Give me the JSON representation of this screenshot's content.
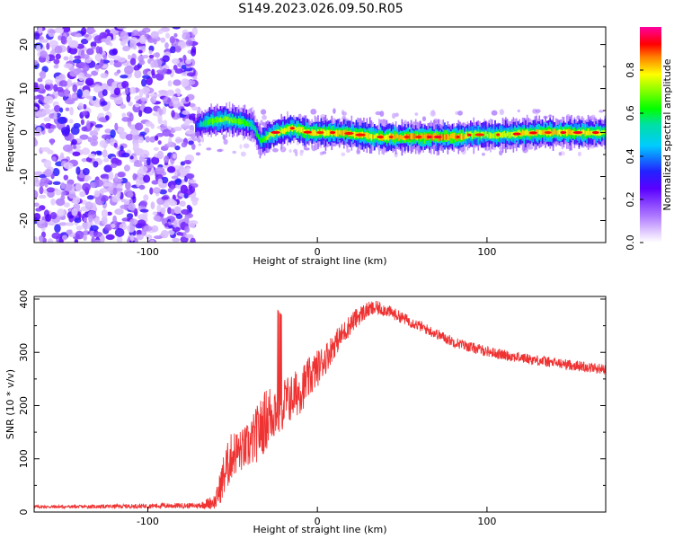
{
  "title": "S149.2023.026.09.50.R05",
  "chart_data": [
    {
      "type": "heatmap",
      "xlabel": "Height of straight line (km)",
      "ylabel": "Frequency (Hz)",
      "xlim": [
        -167,
        170
      ],
      "ylim": [
        -25,
        24
      ],
      "x_ticks": [
        -100,
        0,
        100
      ],
      "y_ticks": [
        -20,
        -10,
        0,
        10,
        20
      ],
      "colorbar": {
        "label": "Normalized spectral amplitude",
        "ticks": [
          0.0,
          0.2,
          0.4,
          0.6,
          0.8
        ],
        "range": [
          0,
          1
        ],
        "colormap": "violet-blue-cyan-green-yellow-red-magenta"
      },
      "noise_region_x": [
        -167,
        -72
      ],
      "ridge": {
        "x": [
          -72,
          -65,
          -55,
          -45,
          -38,
          -34,
          -30,
          -25,
          -15,
          -5,
          5,
          15,
          25,
          35,
          55,
          85,
          90,
          110,
          130,
          150,
          170
        ],
        "y": [
          1.5,
          2.5,
          3,
          2.5,
          1.5,
          -2,
          -1,
          0,
          1,
          0,
          0,
          0,
          -0.5,
          -1,
          -1,
          -1,
          -0.5,
          -0.5,
          0,
          0,
          0
        ],
        "amplitude": [
          0.4,
          0.7,
          0.8,
          0.75,
          0.6,
          0.7,
          0.8,
          0.85,
          0.9,
          0.9,
          0.9,
          0.9,
          0.9,
          0.9,
          0.95,
          0.95,
          0.8,
          0.85,
          0.9,
          0.9,
          0.85
        ]
      }
    },
    {
      "type": "line",
      "xlabel": "Height of straight line (km)",
      "ylabel": "SNR (10 * v/v)",
      "xlim": [
        -167,
        170
      ],
      "ylim": [
        0,
        405
      ],
      "x_ticks": [
        -100,
        0,
        100
      ],
      "y_ticks": [
        0,
        100,
        200,
        300,
        400
      ],
      "color": "#ef3232",
      "series": [
        {
          "x": [
            -167,
            -140,
            -110,
            -90,
            -70,
            -60,
            -55,
            -50,
            -45,
            -40,
            -35,
            -30,
            -25,
            -20,
            -15,
            -10,
            -5,
            0,
            5,
            10,
            15,
            20,
            25,
            30,
            35,
            40,
            50,
            60,
            70,
            80,
            90,
            100,
            110,
            120,
            130,
            140,
            150,
            160,
            170
          ],
          "y": [
            10,
            10,
            11,
            12,
            12,
            20,
            70,
            110,
            115,
            125,
            150,
            175,
            195,
            205,
            215,
            230,
            250,
            270,
            290,
            315,
            335,
            355,
            370,
            380,
            383,
            380,
            365,
            350,
            335,
            320,
            310,
            302,
            295,
            290,
            285,
            280,
            276,
            272,
            268
          ],
          "noise": [
            3,
            3,
            4,
            5,
            5,
            15,
            45,
            45,
            40,
            45,
            55,
            60,
            60,
            50,
            45,
            45,
            40,
            35,
            30,
            25,
            22,
            20,
            18,
            15,
            14,
            12,
            11,
            10,
            10,
            10,
            10,
            10,
            10,
            10,
            10,
            10,
            10,
            10,
            10
          ]
        }
      ]
    }
  ]
}
